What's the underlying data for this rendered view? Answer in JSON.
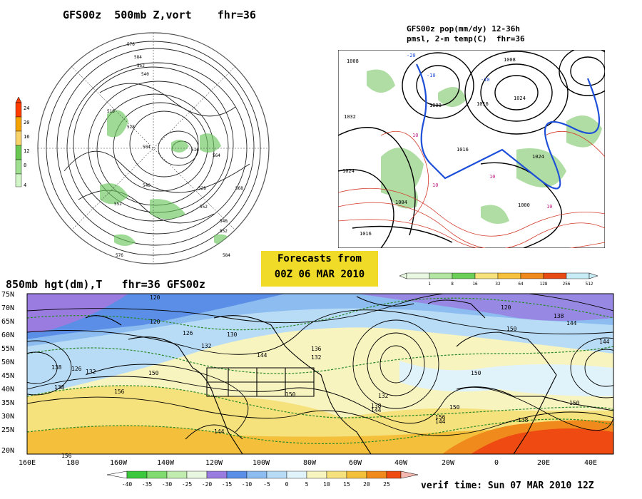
{
  "panel_500mb": {
    "title": "GFS00z  500mb Z,vort    fhr=36",
    "colorbar_ticks": [
      "24",
      "20",
      "16",
      "12",
      "8",
      "4"
    ],
    "colorbar_colors": [
      "#ff3c00",
      "#f4a300",
      "#f7d36a",
      "#68c850",
      "#9ee08e",
      "#d2f5c8"
    ],
    "contour_labels": [
      "576",
      "584",
      "552",
      "540",
      "516",
      "528",
      "504",
      "552",
      "540",
      "516",
      "528",
      "564",
      "552",
      "584",
      "576",
      "568",
      "540",
      "552"
    ]
  },
  "panel_precip": {
    "title_line1": "GFS00z pop(mm/dy) 12-36h",
    "title_line2": "pmsl, 2-m temp(C)  fhr=36",
    "isobar_labels": [
      "1008",
      "1032",
      "1024",
      "1008",
      "1016",
      "1016",
      "1024",
      "1024",
      "1004",
      "1008",
      "1016",
      "1000"
    ],
    "temp_labels": [
      "-20",
      "-10",
      "-10",
      "10",
      "10",
      "10",
      "10"
    ],
    "colorbar_ticks": [
      "1",
      "8",
      "16",
      "32",
      "64",
      "128",
      "256",
      "512"
    ],
    "colorbar_colors": [
      "#e8f8e0",
      "#b2e6a2",
      "#6ccf5a",
      "#f5e27a",
      "#f6c13c",
      "#f08a1c",
      "#e84a14",
      "#c8ecf5"
    ]
  },
  "forecast_box": {
    "line1": "Forecasts from",
    "line2": "00Z 06 MAR 2010"
  },
  "panel_850mb": {
    "title": "850mb hgt(dm),T   fhr=36 GFS00z",
    "lat_labels": [
      "75N",
      "70N",
      "65N",
      "60N",
      "55N",
      "50N",
      "45N",
      "40N",
      "35N",
      "30N",
      "25N",
      "20N"
    ],
    "lon_labels": [
      "160E",
      "180",
      "160W",
      "140W",
      "120W",
      "100W",
      "80W",
      "60W",
      "40W",
      "20W",
      "0",
      "20E",
      "40E"
    ],
    "height_labels": [
      "120",
      "126",
      "132",
      "138",
      "144",
      "150",
      "156",
      "120",
      "132",
      "126",
      "138",
      "150",
      "144",
      "156",
      "130",
      "144",
      "150",
      "144",
      "132",
      "156",
      "150",
      "138",
      "120",
      "138",
      "144",
      "150",
      "136",
      "132",
      "138",
      "144",
      "150"
    ],
    "colorbar_ticks": [
      "-40",
      "-35",
      "-30",
      "-25",
      "-20",
      "-15",
      "-10",
      "-5",
      "0",
      "5",
      "10",
      "15",
      "20",
      "25"
    ],
    "colorbar_colors": [
      "#3cc83c",
      "#80dc6e",
      "#c0ecb0",
      "#e8f8e0",
      "#9a7ce0",
      "#5b8ee6",
      "#8cbcf0",
      "#b8dcf6",
      "#e0f2fa",
      "#f8f4c0",
      "#f6e27c",
      "#f4c03c",
      "#f08a1c",
      "#ee4a12"
    ]
  },
  "verif_time": "verif time: Sun 07 MAR 2010 12Z"
}
